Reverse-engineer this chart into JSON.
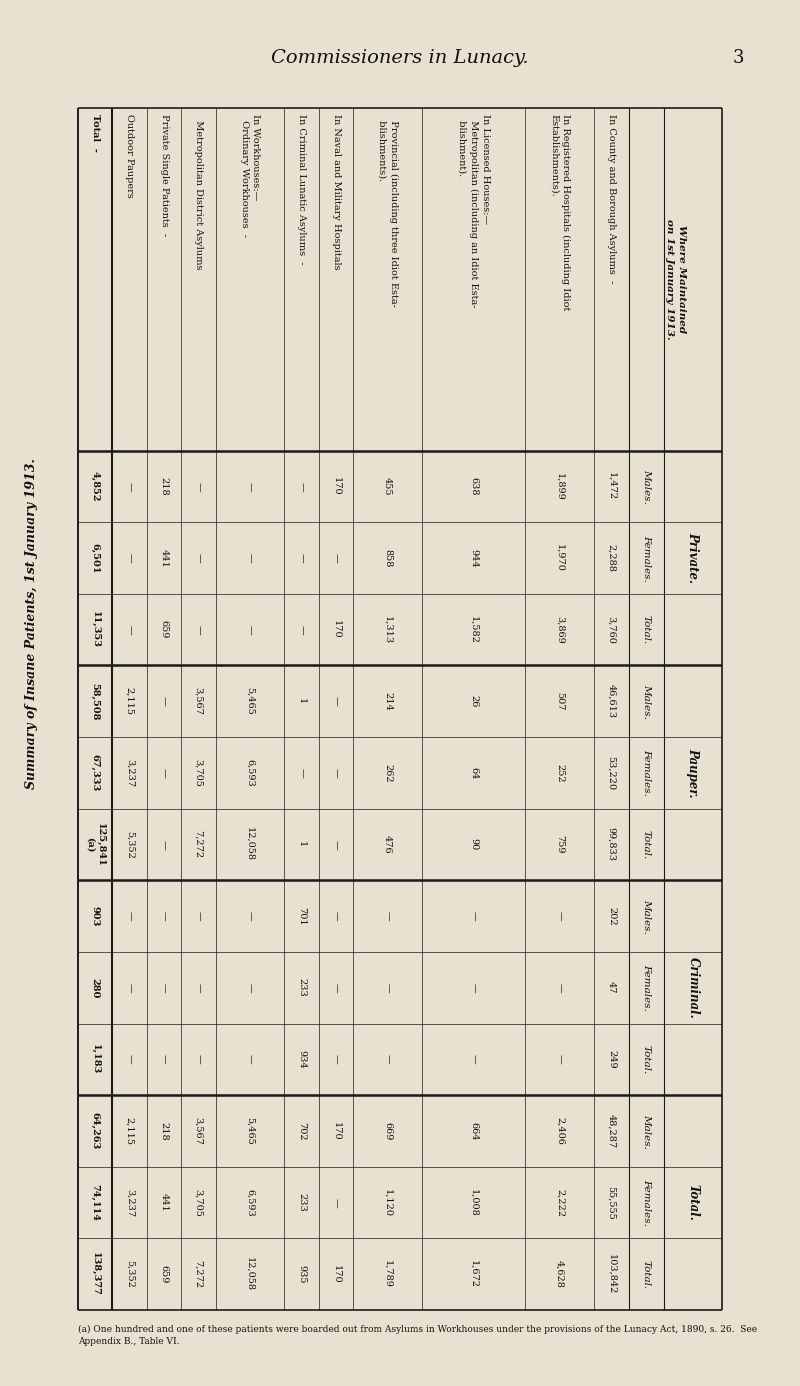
{
  "title": "Commissioners in Lunacy.",
  "page_num": "3",
  "main_title": "Summary of Insane Patients, 1st January 1913.",
  "bg_color": "#e8e0d0",
  "rows": [
    "In County and Borough Asylums  -",
    "In Registered Hospitals (including Idiot\nEstablishments).",
    "In Licensed Houses:—\n  Metropolitan (including an Idiot Esta-\n  blishment).",
    "  Provincial (including three Idiot Esta-\n  blishments).",
    "In Naval and Military Hospitals",
    "In Criminal Lunatic Asylums  -",
    "In Workhouses:—\n  Ordinary Workhouses  -",
    "  Metropolitan District Asylums",
    "Private Single Patients  -",
    "Outdoor Paupers",
    "Total  -"
  ],
  "sections": [
    "Private.",
    "Pauper.",
    "Criminal.",
    "Total."
  ],
  "sub_cols": [
    "Males.",
    "Females.",
    "Total."
  ],
  "data": {
    "private": {
      "males": [
        "1,472",
        "1,899",
        "638",
        "455",
        "170",
        "—",
        "—",
        "—",
        "218",
        "—",
        "4,852"
      ],
      "females": [
        "2,288",
        "1,970",
        "944",
        "858",
        "—",
        "—",
        "—",
        "—",
        "441",
        "—",
        "6,501"
      ],
      "total": [
        "3,760",
        "3,869",
        "1,582",
        "1,313",
        "170",
        "—",
        "—",
        "—",
        "659",
        "—",
        "11,353"
      ]
    },
    "pauper": {
      "males": [
        "46,613",
        "507",
        "26",
        "214",
        "—",
        "1",
        "5,465",
        "3,567",
        "—",
        "2,115",
        "58,508"
      ],
      "females": [
        "53,220",
        "252",
        "64",
        "262",
        "—",
        "—",
        "6,593",
        "3,705",
        "—",
        "3,237",
        "67,333"
      ],
      "total": [
        "99,833",
        "759",
        "90",
        "476",
        "—",
        "1",
        "12,058",
        "7,272",
        "—",
        "5,352",
        "125,841\n(a)"
      ]
    },
    "criminal": {
      "males": [
        "202",
        "—",
        "—",
        "—",
        "—",
        "701",
        "—",
        "—",
        "—",
        "—",
        "903"
      ],
      "females": [
        "47",
        "—",
        "—",
        "—",
        "—",
        "233",
        "—",
        "—",
        "—",
        "—",
        "280"
      ],
      "total": [
        "249",
        "—",
        "—",
        "—",
        "—",
        "934",
        "—",
        "—",
        "—",
        "—",
        "1,183"
      ]
    },
    "total_all": {
      "males": [
        "48,287",
        "2,406",
        "664",
        "669",
        "170",
        "702",
        "5,465",
        "3,567",
        "218",
        "2,115",
        "64,263"
      ],
      "females": [
        "55,555",
        "2,222",
        "1,008",
        "1,120",
        "—",
        "233",
        "6,593",
        "3,705",
        "441",
        "3,237",
        "74,114"
      ],
      "total": [
        "103,842",
        "4,628",
        "1,672",
        "1,789",
        "170",
        "935",
        "12,058",
        "7,272",
        "659",
        "5,352",
        "138,377"
      ]
    }
  },
  "footnote": "(a) One hundred and one of these patients were boarded out from Asylums in Workhouses under the provisions of the Lunacy Act, 1890, s. 26.  See\nAppendix B., Table VI."
}
